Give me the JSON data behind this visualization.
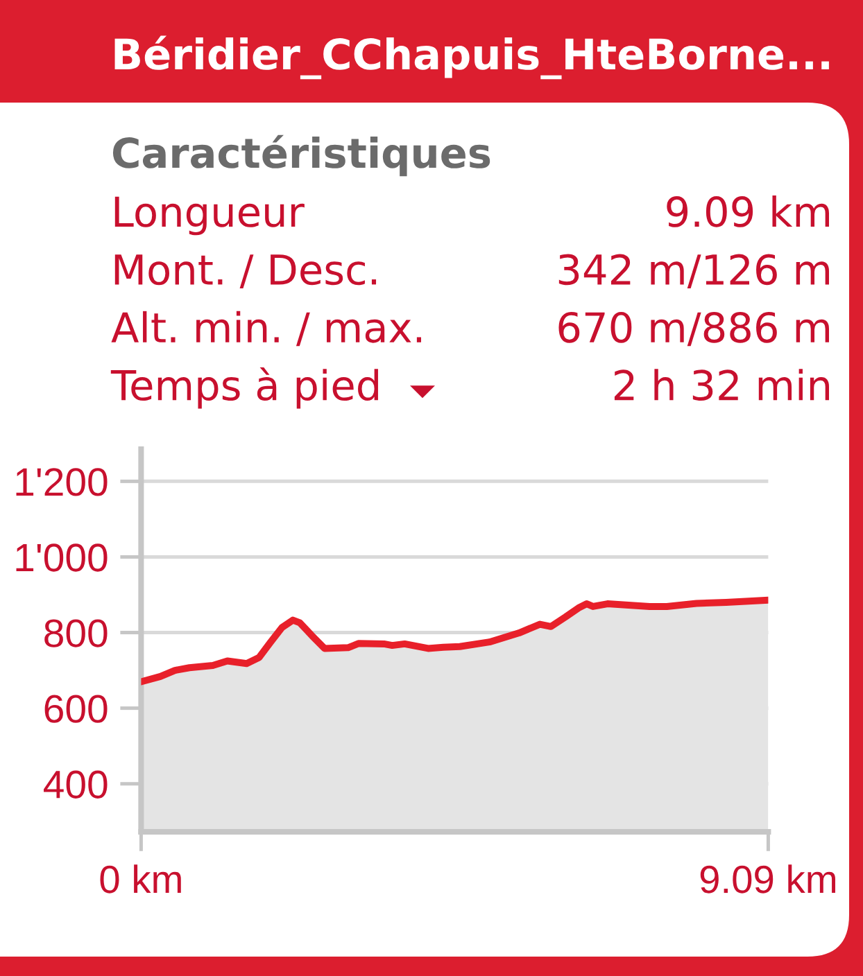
{
  "chart_data": [
    {
      "type": "other",
      "title": "Béridier_CChapuis_HteBorne...",
      "subtitle": "Caractéristiques",
      "annotations": [
        "Longueur",
        "9.09 km",
        "Mont. / Desc.",
        "342 m/126 m",
        "Alt. min. / max.",
        "670 m/886 m",
        "Temps à pied",
        "2 h 32 min"
      ]
    },
    {
      "type": "area",
      "x": [
        0,
        0.28,
        0.49,
        0.7,
        1.04,
        1.25,
        1.53,
        1.71,
        1.87,
        2.04,
        2.2,
        2.3,
        2.48,
        2.66,
        3.0,
        3.15,
        3.52,
        3.64,
        3.82,
        4.16,
        4.38,
        4.62,
        5.05,
        5.48,
        5.78,
        5.94,
        6.15,
        6.34,
        6.46,
        6.55,
        6.76,
        7.37,
        7.62,
        8.05,
        8.48,
        9.09
      ],
      "series": [
        {
          "color": "#e4e4e4",
          "values": [
            670,
            684,
            700,
            707,
            713,
            725,
            718,
            734,
            773,
            813,
            833,
            826,
            791,
            758,
            760,
            771,
            770,
            766,
            770,
            758,
            761,
            763,
            775,
            799,
            822,
            816,
            841,
            865,
            876,
            869,
            876,
            869,
            869,
            877,
            880,
            886
          ]
        }
      ],
      "xlim": [
        0,
        9.09
      ],
      "xticks": [
        {
          "value": 0,
          "label": "0 km"
        },
        {
          "value": 9.09,
          "label": "9.09 km"
        }
      ],
      "ylim": [
        273,
        1285
      ],
      "yticks": [
        400,
        600,
        800,
        {
          "value": 1000,
          "label": "1'000"
        },
        {
          "value": 1200,
          "label": "1'200"
        }
      ],
      "grid": "y"
    }
  ]
}
